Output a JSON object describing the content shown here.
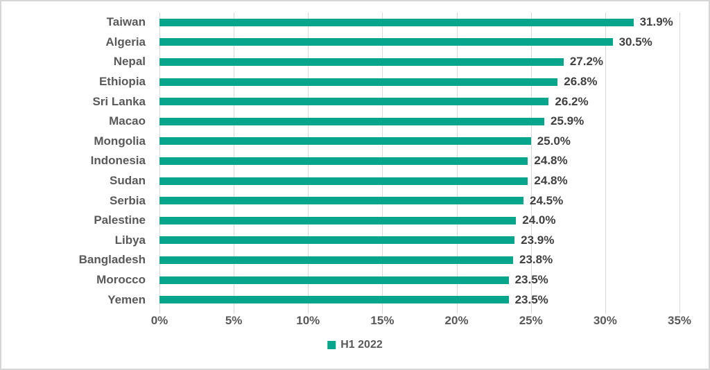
{
  "chart_data": {
    "type": "bar",
    "orientation": "horizontal",
    "title": "",
    "categories": [
      "Taiwan",
      "Algeria",
      "Nepal",
      "Ethiopia",
      "Sri Lanka",
      "Macao",
      "Mongolia",
      "Indonesia",
      "Sudan",
      "Serbia",
      "Palestine",
      "Libya",
      "Bangladesh",
      "Morocco",
      "Yemen"
    ],
    "series": [
      {
        "name": "H1 2022",
        "values": [
          31.9,
          30.5,
          27.2,
          26.8,
          26.2,
          25.9,
          25.0,
          24.8,
          24.8,
          24.5,
          24.0,
          23.9,
          23.8,
          23.5,
          23.5
        ]
      }
    ],
    "data_labels": [
      "31.9%",
      "30.5%",
      "27.2%",
      "26.8%",
      "26.2%",
      "25.9%",
      "25.0%",
      "24.8%",
      "24.8%",
      "24.5%",
      "24.0%",
      "23.9%",
      "23.8%",
      "23.5%",
      "23.5%"
    ],
    "x_ticks": [
      "0%",
      "5%",
      "10%",
      "15%",
      "20%",
      "25%",
      "30%",
      "35%"
    ],
    "xlim": [
      0,
      35
    ],
    "xlabel": "",
    "ylabel": "",
    "grid": true,
    "legend_position": "bottom-center",
    "colors": {
      "bar": "#07a68c",
      "gridline": "#d9d9d9",
      "category_label": "#595959",
      "value_label": "#404040",
      "axis_label": "#595959",
      "legend_text": "#595959",
      "frame_border": "#d6d6d6",
      "background": "#ffffff"
    },
    "legend": {
      "label": "H1 2022"
    }
  }
}
